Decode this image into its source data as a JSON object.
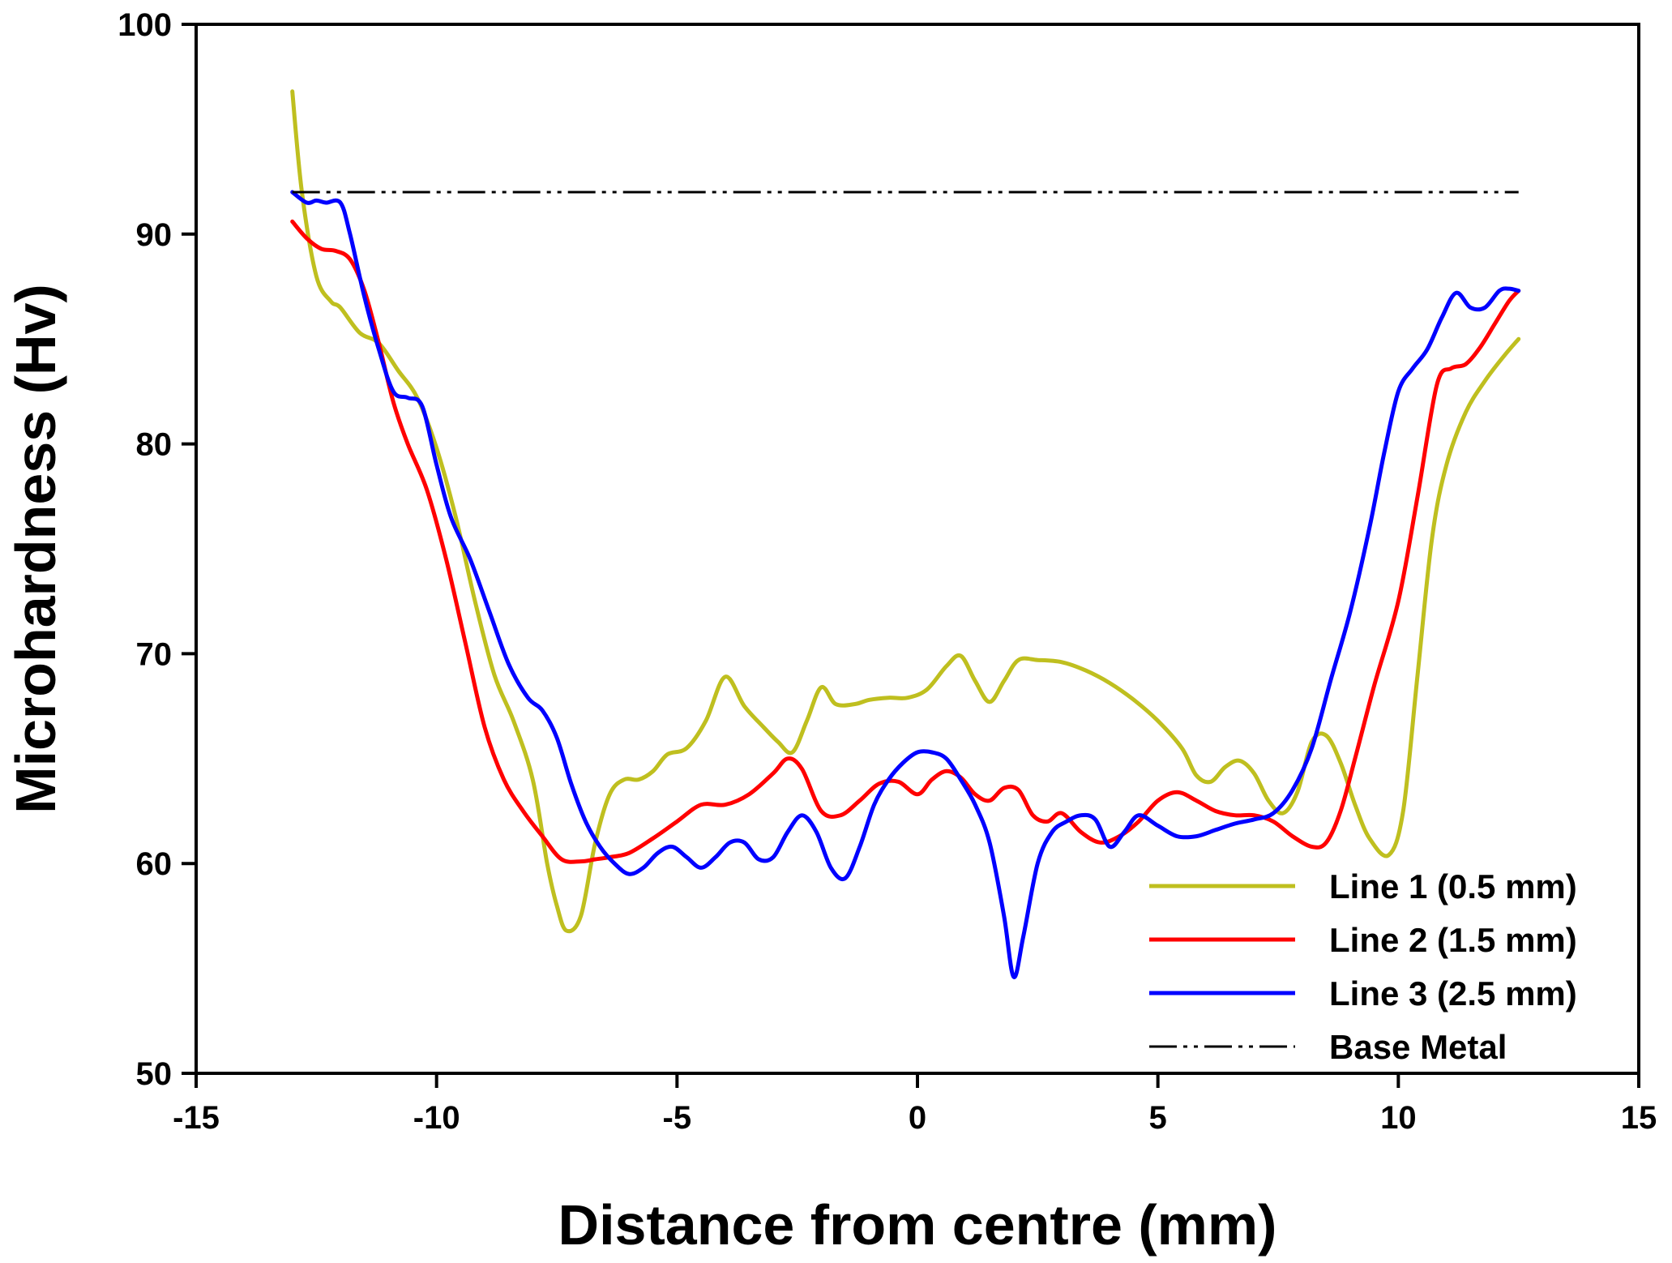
{
  "chart_data": {
    "type": "line",
    "title": "",
    "xlabel": "Distance from centre (mm)",
    "ylabel": "Microhardness (Hv)",
    "xlim": [
      -15,
      15
    ],
    "ylim": [
      50,
      100
    ],
    "xticks": [
      -15,
      -10,
      -5,
      0,
      5,
      10,
      15
    ],
    "yticks": [
      50,
      60,
      70,
      80,
      90,
      100
    ],
    "xtick_labels": [
      "-15",
      "-10",
      "-5",
      "0",
      "5",
      "10",
      "15"
    ],
    "ytick_labels": [
      "50",
      "60",
      "70",
      "80",
      "90",
      "100"
    ],
    "grid": false,
    "legend_position": "bottom-right",
    "series": [
      {
        "name": "Line 1 (0.5 mm)",
        "color": "#BFBF1F",
        "dash": "solid",
        "x": [
          -13.0,
          -12.8,
          -12.5,
          -12.2,
          -12.0,
          -11.6,
          -11.2,
          -10.8,
          -10.4,
          -10.0,
          -9.6,
          -9.2,
          -8.8,
          -8.4,
          -8.0,
          -7.7,
          -7.5,
          -7.3,
          -7.0,
          -6.7,
          -6.4,
          -6.1,
          -5.8,
          -5.5,
          -5.2,
          -4.8,
          -4.4,
          -4.0,
          -3.6,
          -3.2,
          -2.9,
          -2.6,
          -2.3,
          -2.0,
          -1.7,
          -1.3,
          -1.0,
          -0.6,
          -0.2,
          0.2,
          0.6,
          0.9,
          1.2,
          1.5,
          1.8,
          2.1,
          2.5,
          3.0,
          3.5,
          4.0,
          4.5,
          5.0,
          5.5,
          5.8,
          6.1,
          6.4,
          6.7,
          7.0,
          7.3,
          7.6,
          7.9,
          8.2,
          8.5,
          8.8,
          9.1,
          9.4,
          9.8,
          10.1,
          10.4,
          10.7,
          11.0,
          11.4,
          11.8,
          12.2,
          12.5
        ],
        "values": [
          96.8,
          92.0,
          88.0,
          86.8,
          86.5,
          85.3,
          84.8,
          83.5,
          82.2,
          79.8,
          76.5,
          72.5,
          69.0,
          66.8,
          64.0,
          60.0,
          58.0,
          56.8,
          57.5,
          61.0,
          63.3,
          64.0,
          64.0,
          64.4,
          65.2,
          65.5,
          66.8,
          68.9,
          67.5,
          66.5,
          65.8,
          65.3,
          66.8,
          68.4,
          67.6,
          67.6,
          67.8,
          67.9,
          67.9,
          68.3,
          69.4,
          69.9,
          68.7,
          67.7,
          68.7,
          69.7,
          69.7,
          69.6,
          69.2,
          68.6,
          67.8,
          66.8,
          65.5,
          64.2,
          63.9,
          64.6,
          64.9,
          64.3,
          63.0,
          62.4,
          63.4,
          65.8,
          66.1,
          64.8,
          62.8,
          61.2,
          60.4,
          62.5,
          69.0,
          75.5,
          79.0,
          81.5,
          83.0,
          84.2,
          85.0
        ]
      },
      {
        "name": "Line 2 (1.5 mm)",
        "color": "#FF0000",
        "dash": "solid",
        "x": [
          -13.0,
          -12.7,
          -12.4,
          -12.1,
          -11.8,
          -11.5,
          -11.2,
          -10.9,
          -10.6,
          -10.2,
          -9.8,
          -9.4,
          -9.0,
          -8.6,
          -8.2,
          -7.8,
          -7.4,
          -7.0,
          -6.7,
          -6.4,
          -6.0,
          -5.5,
          -5.0,
          -4.5,
          -4.0,
          -3.5,
          -3.0,
          -2.7,
          -2.4,
          -2.0,
          -1.6,
          -1.2,
          -0.8,
          -0.4,
          0.0,
          0.3,
          0.6,
          0.9,
          1.2,
          1.5,
          1.8,
          2.1,
          2.4,
          2.7,
          3.0,
          3.4,
          3.8,
          4.2,
          4.6,
          5.0,
          5.4,
          5.8,
          6.2,
          6.6,
          7.0,
          7.4,
          7.8,
          8.2,
          8.5,
          8.8,
          9.1,
          9.5,
          10.0,
          10.4,
          10.8,
          11.1,
          11.4,
          11.7,
          12.0,
          12.3,
          12.5
        ],
        "values": [
          90.6,
          89.8,
          89.3,
          89.2,
          88.8,
          87.3,
          84.8,
          82.0,
          80.0,
          77.8,
          74.5,
          70.5,
          66.5,
          64.0,
          62.5,
          61.3,
          60.2,
          60.1,
          60.2,
          60.3,
          60.5,
          61.2,
          62.0,
          62.8,
          62.8,
          63.3,
          64.3,
          65.0,
          64.5,
          62.5,
          62.3,
          63.0,
          63.8,
          63.9,
          63.3,
          64.0,
          64.4,
          64.1,
          63.3,
          63.0,
          63.6,
          63.5,
          62.3,
          62.0,
          62.4,
          61.5,
          61.0,
          61.3,
          62.0,
          63.0,
          63.4,
          63.0,
          62.5,
          62.3,
          62.3,
          62.0,
          61.3,
          60.8,
          61.0,
          62.5,
          65.0,
          68.5,
          72.5,
          77.5,
          82.8,
          83.6,
          83.8,
          84.6,
          85.7,
          86.8,
          87.3
        ]
      },
      {
        "name": "Line 3 (2.5 mm)",
        "color": "#0000FF",
        "dash": "solid",
        "x": [
          -13.0,
          -12.7,
          -12.5,
          -12.3,
          -12.0,
          -11.8,
          -11.5,
          -11.2,
          -10.9,
          -10.6,
          -10.3,
          -10.0,
          -9.7,
          -9.3,
          -8.9,
          -8.5,
          -8.1,
          -7.8,
          -7.5,
          -7.2,
          -6.9,
          -6.6,
          -6.3,
          -6.0,
          -5.7,
          -5.4,
          -5.1,
          -4.8,
          -4.5,
          -4.2,
          -3.9,
          -3.6,
          -3.3,
          -3.0,
          -2.7,
          -2.4,
          -2.1,
          -1.8,
          -1.5,
          -1.2,
          -0.9,
          -0.6,
          -0.3,
          0.0,
          0.3,
          0.6,
          0.9,
          1.2,
          1.5,
          1.8,
          2.0,
          2.2,
          2.5,
          2.8,
          3.1,
          3.4,
          3.7,
          4.0,
          4.3,
          4.6,
          5.0,
          5.4,
          5.8,
          6.2,
          6.6,
          7.0,
          7.4,
          7.8,
          8.2,
          8.6,
          9.0,
          9.4,
          9.7,
          10.0,
          10.3,
          10.6,
          10.9,
          11.2,
          11.5,
          11.8,
          12.1,
          12.3,
          12.5
        ],
        "values": [
          92.0,
          91.5,
          91.6,
          91.5,
          91.5,
          90.0,
          87.0,
          84.5,
          82.5,
          82.2,
          81.8,
          79.0,
          76.5,
          74.5,
          72.0,
          69.5,
          67.9,
          67.3,
          66.0,
          63.8,
          62.0,
          60.8,
          60.0,
          59.5,
          59.8,
          60.5,
          60.8,
          60.3,
          59.8,
          60.3,
          61.0,
          61.0,
          60.2,
          60.3,
          61.5,
          62.3,
          61.5,
          59.8,
          59.3,
          60.8,
          62.8,
          64.0,
          64.8,
          65.3,
          65.3,
          65.0,
          64.0,
          62.8,
          61.0,
          57.5,
          54.6,
          56.5,
          60.0,
          61.5,
          62.0,
          62.3,
          62.1,
          60.8,
          61.5,
          62.3,
          61.8,
          61.3,
          61.3,
          61.6,
          61.9,
          62.1,
          62.4,
          63.5,
          65.5,
          68.8,
          72.0,
          76.0,
          79.5,
          82.5,
          83.6,
          84.5,
          86.0,
          87.2,
          86.5,
          86.5,
          87.3,
          87.4,
          87.3
        ]
      },
      {
        "name": "Base Metal",
        "color": "#000000",
        "dash": "dash-dot-dot",
        "x": [
          -13.0,
          12.5
        ],
        "values": [
          92.0,
          92.0
        ]
      }
    ]
  }
}
